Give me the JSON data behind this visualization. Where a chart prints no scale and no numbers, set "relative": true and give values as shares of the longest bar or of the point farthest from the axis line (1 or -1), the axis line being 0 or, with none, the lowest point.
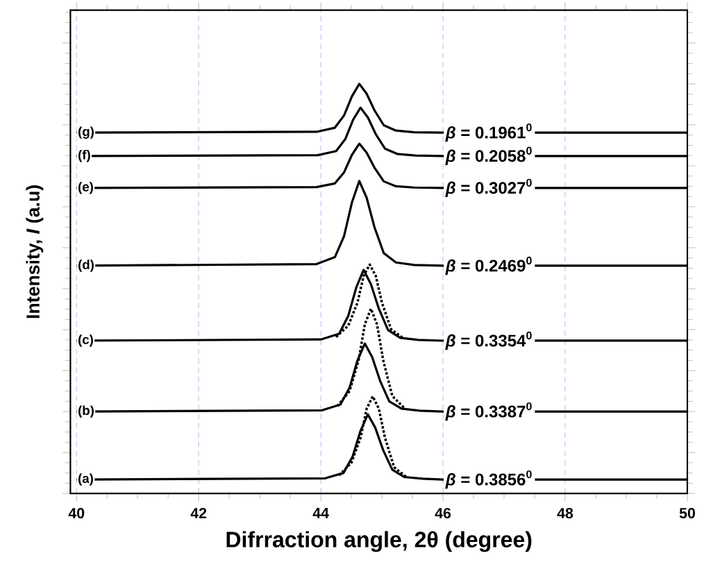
{
  "chart_data": {
    "type": "line",
    "relative": true,
    "xlabel": "Difrraction angle, 2θ (degree)",
    "ylabel": "Intensity, *I* (a.u)",
    "xlim": [
      39.9,
      50
    ],
    "xticks": [
      40,
      42,
      44,
      46,
      48,
      50
    ],
    "grid": "x",
    "marker": "none",
    "series": [
      {
        "name": "(a)",
        "color": "#000000",
        "line_style": "solid",
        "x": [
          40,
          44.07,
          44.37,
          44.52,
          44.65,
          44.77,
          44.89,
          45.02,
          45.17,
          45.37,
          45.67,
          46,
          50
        ],
        "values": [
          0.034,
          0.037,
          0.05,
          0.09,
          0.153,
          0.193,
          0.161,
          0.106,
          0.058,
          0.04,
          0.036,
          0.034,
          0.034
        ]
      },
      {
        "name": "(b)",
        "color": "#000000",
        "line_style": "solid",
        "x": [
          40,
          44.02,
          44.32,
          44.47,
          44.6,
          44.72,
          44.84,
          44.97,
          45.12,
          45.32,
          45.62,
          46,
          50
        ],
        "values": [
          0.2,
          0.203,
          0.217,
          0.258,
          0.325,
          0.366,
          0.333,
          0.275,
          0.225,
          0.207,
          0.202,
          0.2,
          0.2
        ]
      },
      {
        "name": "(c)",
        "color": "#000000",
        "line_style": "solid",
        "x": [
          40,
          44.0,
          44.3,
          44.45,
          44.58,
          44.7,
          44.82,
          44.95,
          45.1,
          45.3,
          45.6,
          46,
          50
        ],
        "values": [
          0.373,
          0.376,
          0.39,
          0.434,
          0.503,
          0.546,
          0.511,
          0.451,
          0.399,
          0.38,
          0.375,
          0.373,
          0.373
        ]
      },
      {
        "name": "(d)",
        "color": "#000000",
        "line_style": "solid",
        "x": [
          40,
          43.93,
          44.23,
          44.38,
          44.51,
          44.63,
          44.75,
          44.88,
          45.03,
          45.23,
          45.53,
          46,
          50
        ],
        "values": [
          0.556,
          0.56,
          0.577,
          0.628,
          0.711,
          0.763,
          0.722,
          0.649,
          0.587,
          0.564,
          0.558,
          0.556,
          0.556
        ]
      },
      {
        "name": "(e)",
        "color": "#000000",
        "line_style": "solid",
        "x": [
          40,
          43.93,
          44.23,
          44.38,
          44.51,
          44.63,
          44.75,
          44.88,
          45.03,
          45.23,
          45.53,
          46,
          50
        ],
        "values": [
          0.746,
          0.748,
          0.757,
          0.784,
          0.827,
          0.854,
          0.832,
          0.795,
          0.762,
          0.75,
          0.747,
          0.746,
          0.746
        ]
      },
      {
        "name": "(f)",
        "color": "#000000",
        "line_style": "solid",
        "x": [
          40,
          43.95,
          44.25,
          44.4,
          44.53,
          44.65,
          44.77,
          44.9,
          45.05,
          45.25,
          45.55,
          46,
          50
        ],
        "values": [
          0.824,
          0.826,
          0.836,
          0.865,
          0.913,
          0.942,
          0.918,
          0.877,
          0.842,
          0.829,
          0.825,
          0.824,
          0.824
        ]
      },
      {
        "name": "(g)",
        "color": "#000000",
        "line_style": "solid",
        "x": [
          40,
          43.93,
          44.23,
          44.38,
          44.51,
          44.63,
          44.75,
          44.88,
          45.03,
          45.23,
          45.53,
          46,
          50
        ],
        "values": [
          0.881,
          0.883,
          0.893,
          0.923,
          0.97,
          1.0,
          0.976,
          0.935,
          0.899,
          0.886,
          0.882,
          0.881,
          0.881
        ]
      },
      {
        "color": "#000000",
        "line_style": "dotted",
        "x": [
          44.3,
          44.5,
          44.65,
          44.75,
          44.85,
          44.95,
          45.05,
          45.2,
          45.4
        ],
        "values": [
          0.044,
          0.075,
          0.136,
          0.207,
          0.237,
          0.207,
          0.136,
          0.064,
          0.04
        ]
      },
      {
        "color": "#000000",
        "line_style": "dotted",
        "x": [
          44.27,
          44.47,
          44.62,
          44.72,
          44.82,
          44.92,
          45.02,
          45.17,
          45.37
        ],
        "values": [
          0.213,
          0.25,
          0.326,
          0.413,
          0.451,
          0.413,
          0.326,
          0.238,
          0.208
        ]
      },
      {
        "color": "#000000",
        "line_style": "dotted",
        "x": [
          44.25,
          44.45,
          44.6,
          44.7,
          44.8,
          44.9,
          45.0,
          45.15,
          45.35
        ],
        "values": [
          0.382,
          0.41,
          0.466,
          0.531,
          0.559,
          0.531,
          0.466,
          0.401,
          0.379
        ]
      }
    ],
    "annotations": [
      "*β* = 0.3856$^{0}$",
      "*β* = 0.3387$^{0}$",
      "*β* = 0.3354$^{0}$",
      "*β* = 0.2469$^{0}$",
      "*β* = 0.3027$^{0}$",
      "*β* = 0.2058$^{0}$",
      "*β* = 0.1961$^{0}$"
    ]
  }
}
